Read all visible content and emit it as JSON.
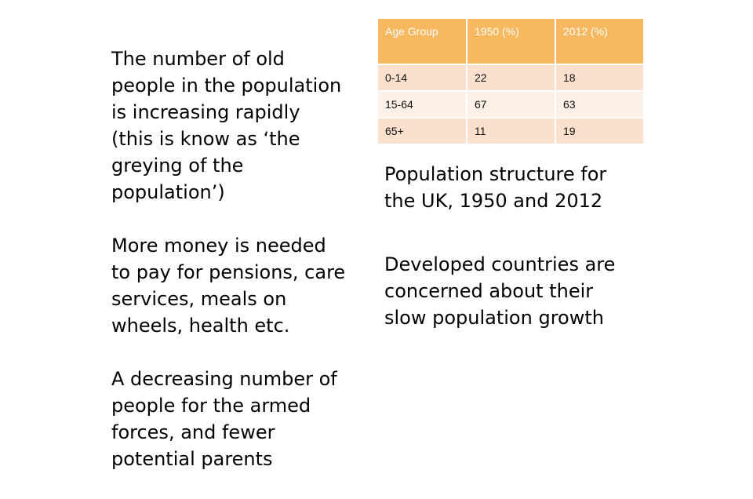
{
  "left_points": [
    "The number of old\npeople in the population\nis increasing rapidly\n(this is know as ‘the\ngreying of the\npopulation’)",
    "More money is needed\nto pay for pensions, care\nservices, meals on\nwheels, health etc.",
    "A decreasing number of\npeople  for the armed\nforces, and fewer\npotential parents"
  ],
  "table": {
    "headers": [
      "Age Group",
      "1950 (%)",
      "2012 (%)"
    ],
    "rows": [
      [
        "0-14",
        "22",
        "18"
      ],
      [
        "15-64",
        "67",
        "63"
      ],
      [
        "65+",
        "11",
        "19"
      ]
    ]
  },
  "caption": "Population structure for\nthe UK, 1950 and 2012",
  "note": "Developed countries are\nconcerned about their\nslow population growth"
}
